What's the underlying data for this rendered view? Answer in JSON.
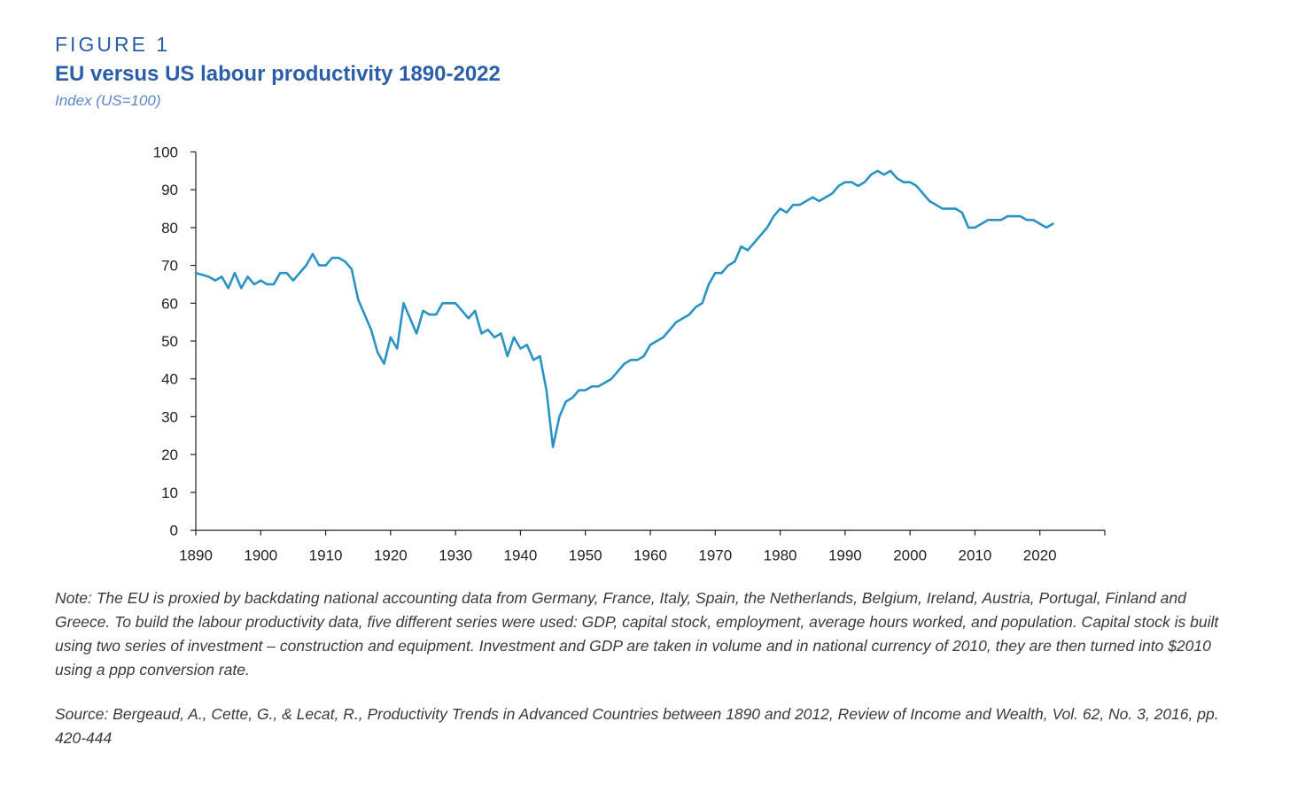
{
  "figure": {
    "label": "FIGURE 1",
    "title": "EU versus US labour productivity 1890-2022",
    "subtitle": "Index (US=100)"
  },
  "chart_data": {
    "type": "line",
    "title": "EU versus US labour productivity 1890-2022",
    "subtitle": "Index (US=100)",
    "xlabel": "",
    "ylabel": "",
    "xlim": [
      1890,
      2030
    ],
    "ylim": [
      0,
      100
    ],
    "x_ticks": [
      1890,
      1900,
      1910,
      1920,
      1930,
      1940,
      1950,
      1960,
      1970,
      1980,
      1990,
      2000,
      2010,
      2020
    ],
    "y_ticks": [
      0,
      10,
      20,
      30,
      40,
      50,
      60,
      70,
      80,
      90,
      100
    ],
    "grid": false,
    "line_color": "#2a93c4",
    "series": [
      {
        "x": [
          1890,
          1891,
          1892,
          1893,
          1894,
          1895,
          1896,
          1897,
          1898,
          1899,
          1900,
          1901,
          1902,
          1903,
          1904,
          1905,
          1906,
          1907,
          1908,
          1909,
          1910,
          1911,
          1912,
          1913,
          1914,
          1915,
          1916,
          1917,
          1918,
          1919,
          1920,
          1921,
          1922,
          1923,
          1924,
          1925,
          1926,
          1927,
          1928,
          1929,
          1930,
          1931,
          1932,
          1933,
          1934,
          1935,
          1936,
          1937,
          1938,
          1939,
          1940,
          1941,
          1942,
          1943,
          1944,
          1945,
          1946,
          1947,
          1948,
          1949,
          1950,
          1951,
          1952,
          1953,
          1954,
          1955,
          1956,
          1957,
          1958,
          1959,
          1960,
          1961,
          1962,
          1963,
          1964,
          1965,
          1966,
          1967,
          1968,
          1969,
          1970,
          1971,
          1972,
          1973,
          1974,
          1975,
          1976,
          1977,
          1978,
          1979,
          1980,
          1981,
          1982,
          1983,
          1984,
          1985,
          1986,
          1987,
          1988,
          1989,
          1990,
          1991,
          1992,
          1993,
          1994,
          1995,
          1996,
          1997,
          1998,
          1999,
          2000,
          2001,
          2002,
          2003,
          2004,
          2005,
          2006,
          2007,
          2008,
          2009,
          2010,
          2011,
          2012,
          2013,
          2014,
          2015,
          2016,
          2017,
          2018,
          2019,
          2020,
          2021,
          2022
        ],
        "values": [
          68,
          67.5,
          67,
          66,
          67,
          64,
          68,
          64,
          67,
          65,
          66,
          65,
          65,
          68,
          68,
          66,
          68,
          70,
          73,
          70,
          70,
          72,
          72,
          71,
          69,
          61,
          57,
          53,
          47,
          44,
          51,
          48,
          60,
          56,
          52,
          58,
          57,
          57,
          60,
          60,
          60,
          58,
          56,
          58,
          52,
          53,
          51,
          52,
          46,
          51,
          48,
          49,
          45,
          46,
          37,
          22,
          30,
          34,
          35,
          37,
          37,
          38,
          38,
          39,
          40,
          42,
          44,
          45,
          45,
          46,
          49,
          50,
          51,
          53,
          55,
          56,
          57,
          59,
          60,
          65,
          68,
          68,
          70,
          71,
          75,
          74,
          76,
          78,
          80,
          83,
          85,
          84,
          86,
          86,
          87,
          88,
          87,
          88,
          89,
          91,
          92,
          92,
          91,
          92,
          94,
          95,
          94,
          95,
          93,
          92,
          92,
          91,
          89,
          87,
          86,
          85,
          85,
          85,
          84,
          80,
          80,
          81,
          82,
          82,
          82,
          83,
          83,
          83,
          82,
          82,
          81,
          80,
          81
        ]
      }
    ]
  },
  "note": "Note: The EU is proxied by backdating national accounting data from Germany, France, Italy, Spain, the Netherlands, Belgium, Ireland, Austria, Portugal, Finland and Greece. To build the labour productivity data, five different series were used: GDP, capital stock, employment, average hours worked, and population. Capital stock is built using two series of investment – construction and equipment. Investment and GDP are taken in volume and in national currency of 2010, they are then turned into $2010 using a ppp conversion rate.",
  "source": "Source: Bergeaud, A., Cette, G., & Lecat, R., Productivity Trends in Advanced Countries between 1890 and 2012, Review of Income and Wealth, Vol. 62, No. 3, 2016, pp. 420-444"
}
